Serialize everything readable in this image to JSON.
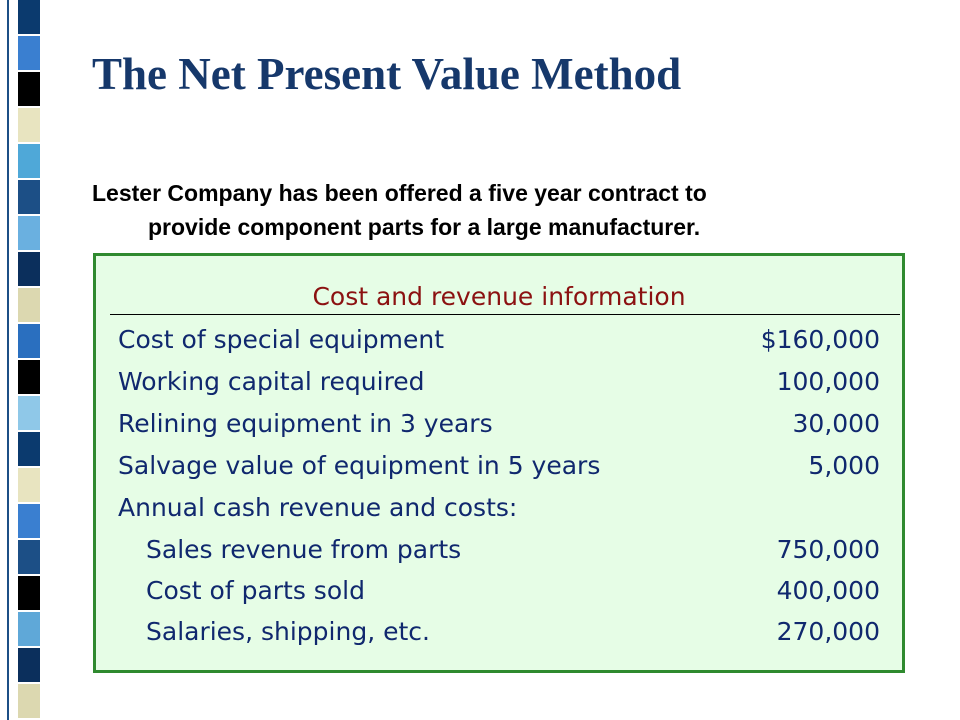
{
  "header": {
    "title": "The Net Present Value Method"
  },
  "intro": [
    "Lester Company has been offered a five year contract to",
    "provide component parts for a large manufacturer."
  ],
  "table": {
    "heading": "Cost and revenue information",
    "rows": [
      [
        "Cost of special equipment",
        "$160,000"
      ],
      [
        "Working capital required",
        "100,000"
      ],
      [
        "Relining equipment in 3 years",
        "30,000"
      ],
      [
        "Salvage value of equipment in 5 years",
        "5,000"
      ]
    ],
    "group": {
      "label": "Annual cash revenue and costs:",
      "rows": [
        [
          "Sales revenue from parts",
          "750,000"
        ],
        [
          "Cost of parts sold",
          "400,000"
        ],
        [
          "Salaries, shipping, etc.",
          "270,000"
        ]
      ]
    }
  }
}
